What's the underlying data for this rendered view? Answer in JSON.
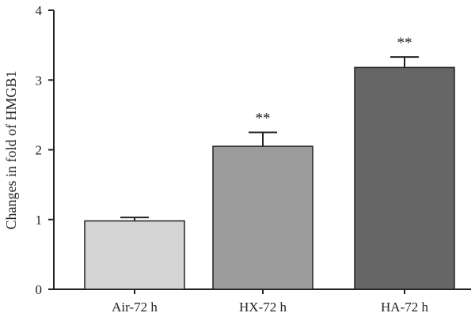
{
  "chart_data": {
    "type": "bar",
    "title": "",
    "xlabel": "",
    "ylabel": "Changes in fold of HMGB1",
    "categories": [
      "Air-72 h",
      "HX-72 h",
      "HA-72 h"
    ],
    "values": [
      0.98,
      2.05,
      3.18
    ],
    "error": [
      0.05,
      0.2,
      0.15
    ],
    "annotations": [
      "",
      "**",
      "**"
    ],
    "ylim": [
      0,
      4
    ],
    "yticks": [
      "0",
      "1",
      "2",
      "3",
      "4"
    ],
    "grid": false,
    "bar_colors": [
      "#d4d4d4",
      "#9b9b9b",
      "#666666"
    ],
    "edge_color": "#222222"
  }
}
